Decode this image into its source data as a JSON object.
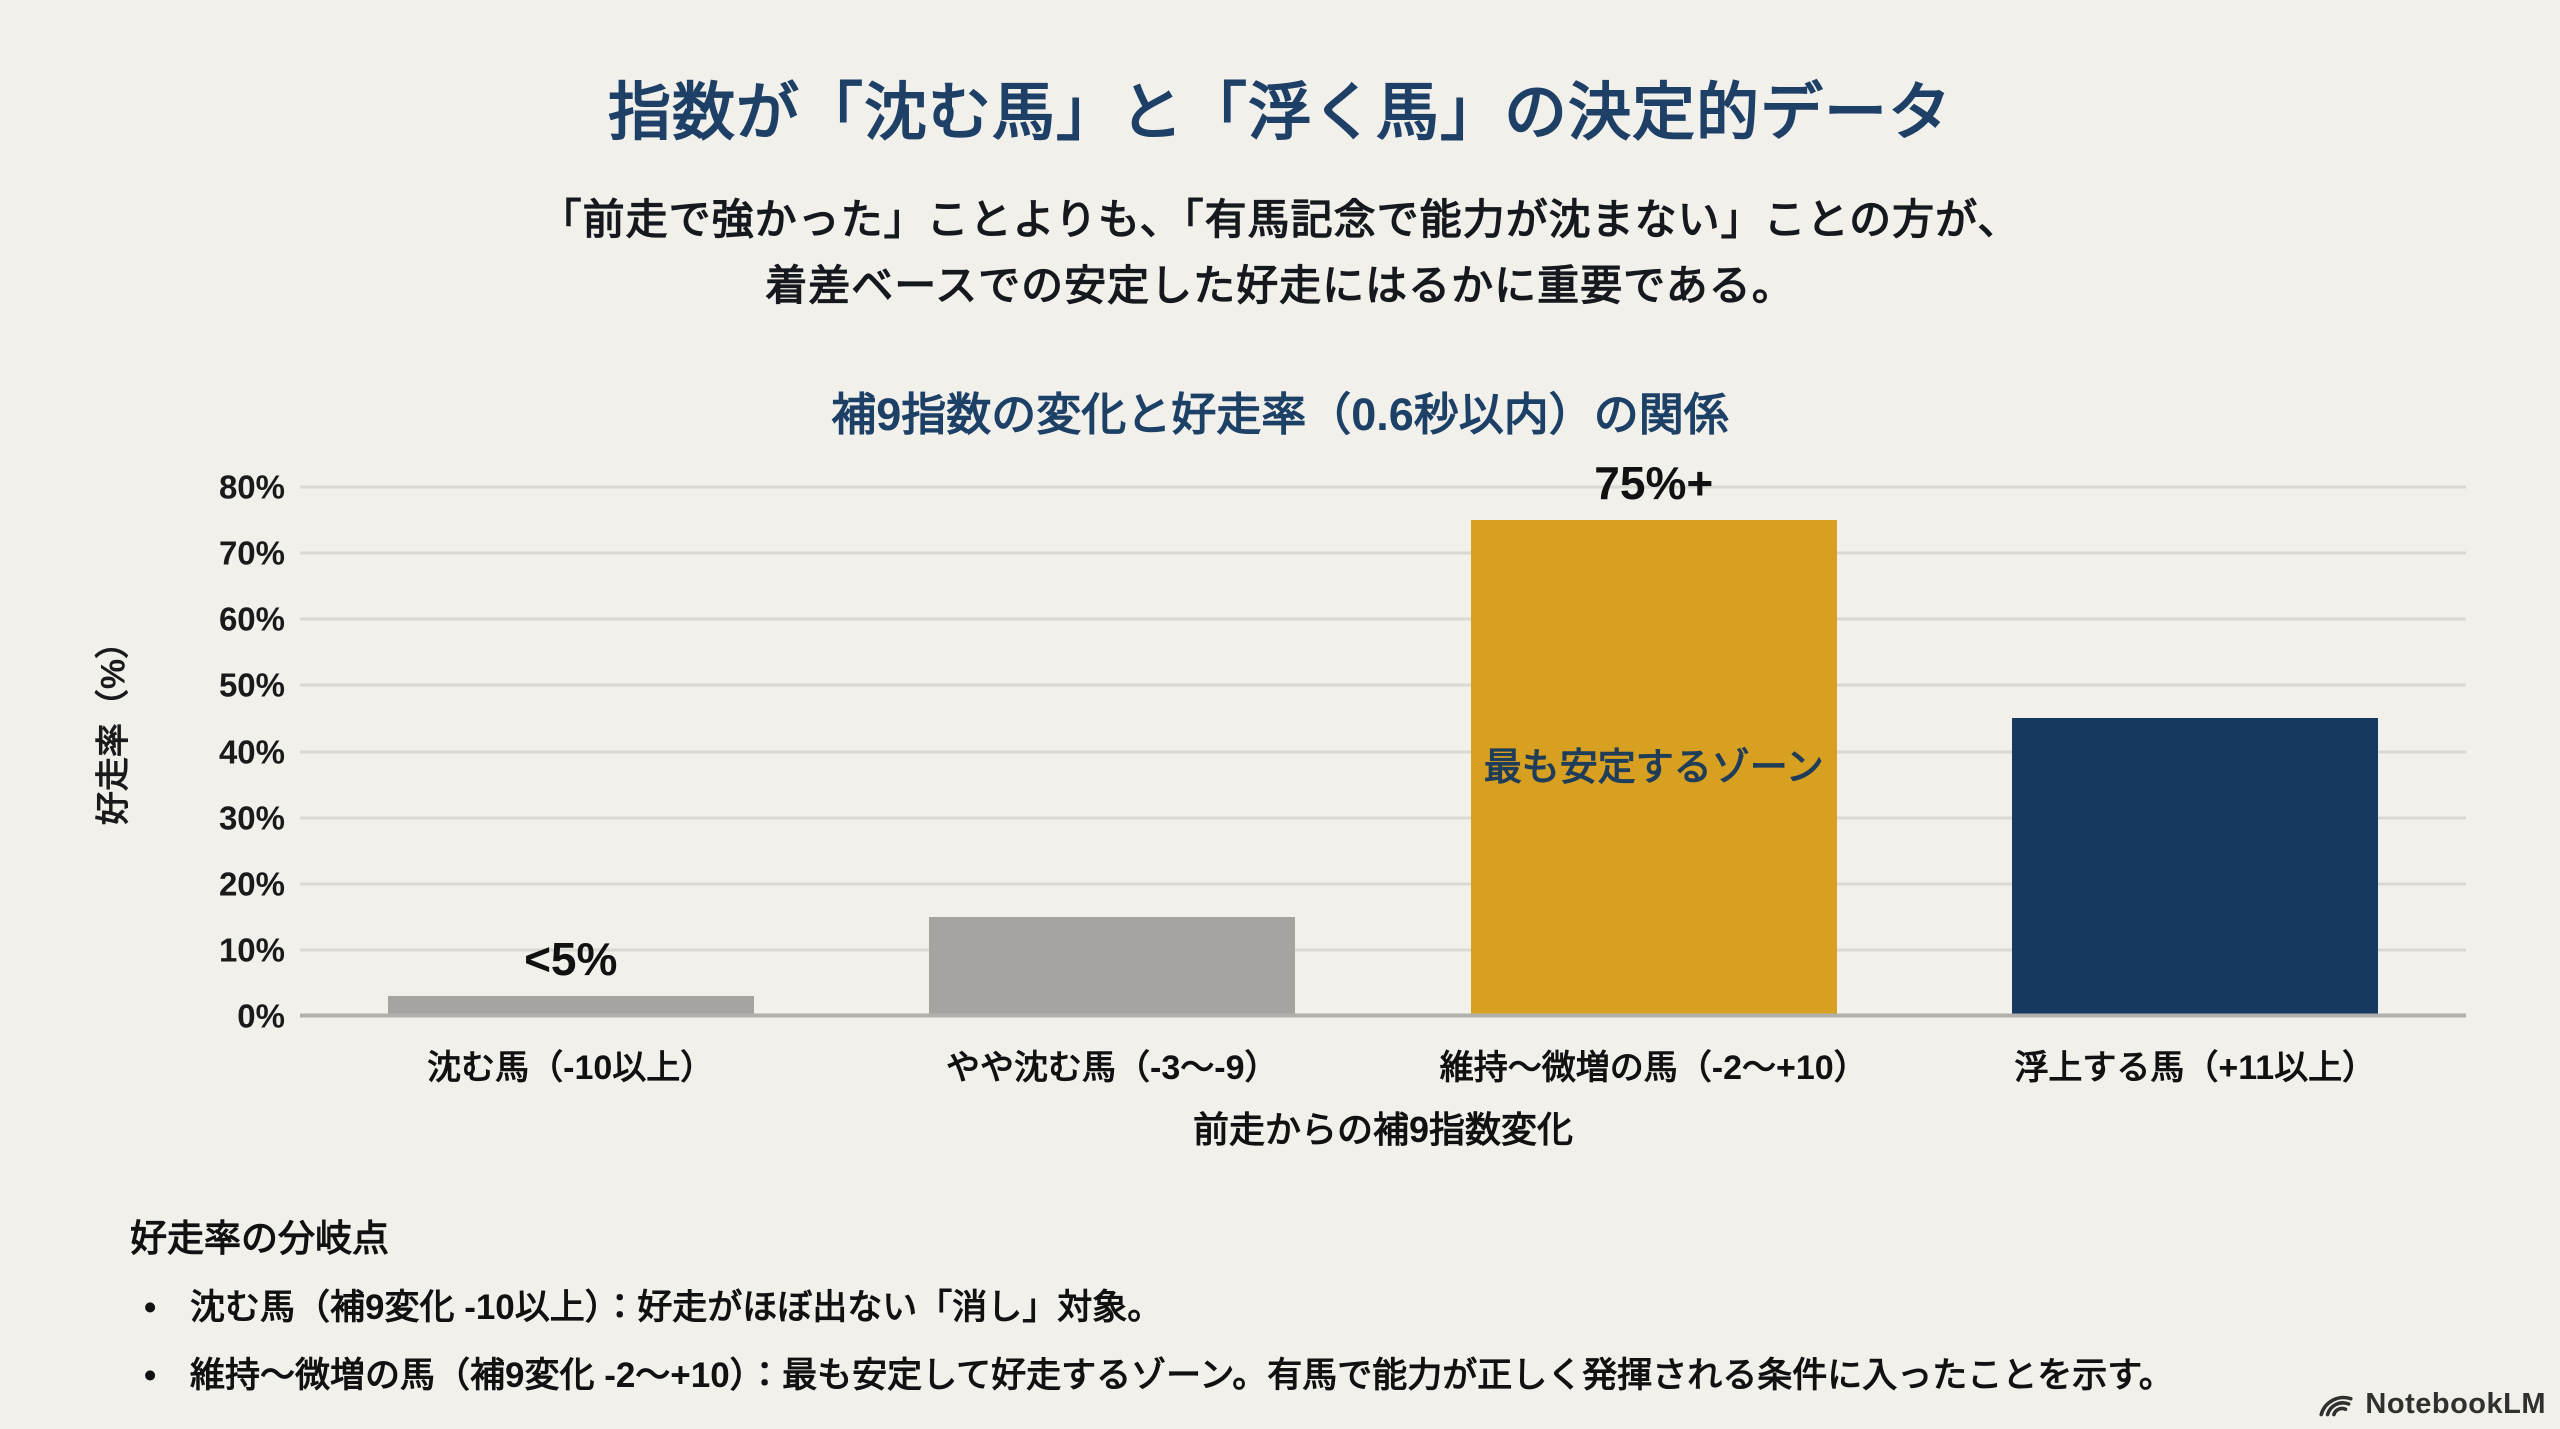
{
  "header": {
    "title": "指数が「沈む馬」と「浮く馬」の決定的データ",
    "subtitle_lines": [
      "「前走で強かった」ことよりも、「有馬記念で能力が沈まない」ことの方が、",
      "着差ベースでの安定した好走にはるかに重要である。"
    ]
  },
  "chart_data": {
    "type": "bar",
    "title": "補9指数の変化と好走率（0.6秒以内）の関係",
    "xlabel": "前走からの補9指数変化",
    "ylabel": "好走率（%）",
    "ylim": [
      0,
      80
    ],
    "ytick_step": 10,
    "ytick_suffix": "%",
    "grid": true,
    "legend": "none",
    "categories": [
      "沈む馬（-10以上）",
      "やや沈む馬（-3〜-9）",
      "維持〜微増の馬（-2〜+10）",
      "浮上する馬（+11以上）"
    ],
    "values": [
      3,
      15,
      75,
      45
    ],
    "bar_colors": [
      "#a5a4a1",
      "#a5a4a1",
      "#d7a021",
      "#16395f"
    ],
    "bar_labels": [
      "<5%",
      "",
      "75%+",
      ""
    ],
    "bar_inner_labels": [
      "",
      "",
      "最も安定するゾーン",
      ""
    ]
  },
  "notes": {
    "heading": "好走率の分岐点",
    "bullet_char": "•",
    "bullets": [
      "沈む馬（補9変化 -10以上）：好走がほぼ出ない「消し」対象。",
      "維持〜微増の馬（補9変化 -2〜+10）：最も安定して好走するゾーン。有馬で能力が正しく発揮される条件に入ったことを示す。"
    ]
  },
  "watermark": {
    "label": "NotebookLM"
  },
  "colors": {
    "background": "#f1f0eb",
    "accent_navy": "#1e4066",
    "bar_gray": "#a5a4a1",
    "bar_gold": "#d7a021",
    "bar_navy": "#16395f",
    "gridline": "#d9d8d3",
    "inner_label_navy": "#1f3c58"
  }
}
